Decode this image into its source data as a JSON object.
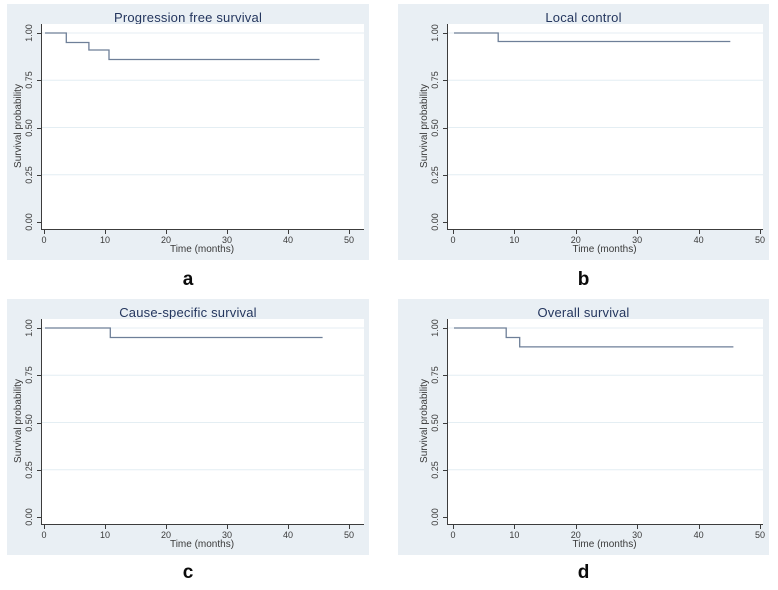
{
  "colors": {
    "page_bg": "#ffffff",
    "panel_bg": "#e9eff4",
    "plot_bg": "#ffffff",
    "curve_line": "#6e7f98",
    "grid_line": "#e4eef3",
    "axis_line": "#3c3c3c",
    "title_text": "#24365e",
    "tick_text": "#3a3a3a",
    "caption_text": "#0b0b0b"
  },
  "chart_data": [
    {
      "panel_label": "a",
      "type": "line",
      "subtype": "kaplan-meier-step",
      "title": "Progression free survival",
      "xlabel": "Time (months)",
      "ylabel": "Survival probability",
      "xlim": [
        0,
        50
      ],
      "ylim": [
        0.0,
        1.0
      ],
      "xticks": [
        "0",
        "10",
        "20",
        "30",
        "40",
        "50"
      ],
      "yticks": [
        "0.00",
        "0.25",
        "0.50",
        "0.75",
        "1.00"
      ],
      "grid": "horizontal",
      "legend": "none",
      "steps": [
        [
          0,
          1.0
        ],
        [
          3.5,
          1.0
        ],
        [
          3.5,
          0.95
        ],
        [
          7.2,
          0.95
        ],
        [
          7.2,
          0.91
        ],
        [
          10.5,
          0.91
        ],
        [
          10.5,
          0.86
        ],
        [
          45,
          0.86
        ]
      ]
    },
    {
      "panel_label": "b",
      "type": "line",
      "subtype": "kaplan-meier-step",
      "title": "Local control",
      "xlabel": "Time (months)",
      "ylabel": "Survival probability",
      "xlim": [
        0,
        50
      ],
      "ylim": [
        0.0,
        1.0
      ],
      "xticks": [
        "0",
        "10",
        "20",
        "30",
        "40",
        "50"
      ],
      "yticks": [
        "0.00",
        "0.25",
        "0.50",
        "0.75",
        "1.00"
      ],
      "grid": "horizontal",
      "legend": "none",
      "steps": [
        [
          0,
          1.0
        ],
        [
          7.2,
          1.0
        ],
        [
          7.2,
          0.955
        ],
        [
          45,
          0.955
        ]
      ]
    },
    {
      "panel_label": "c",
      "type": "line",
      "subtype": "kaplan-meier-step",
      "title": "Cause-specific survival",
      "xlabel": "Time (months)",
      "ylabel": "Survival probability",
      "xlim": [
        0,
        50
      ],
      "ylim": [
        0.0,
        1.0
      ],
      "xticks": [
        "0",
        "10",
        "20",
        "30",
        "40",
        "50"
      ],
      "yticks": [
        "0.00",
        "0.25",
        "0.50",
        "0.75",
        "1.00"
      ],
      "grid": "horizontal",
      "legend": "none",
      "steps": [
        [
          0,
          1.0
        ],
        [
          10.7,
          1.0
        ],
        [
          10.7,
          0.95
        ],
        [
          45.5,
          0.95
        ]
      ]
    },
    {
      "panel_label": "d",
      "type": "line",
      "subtype": "kaplan-meier-step",
      "title": "Overall survival",
      "xlabel": "Time (months)",
      "ylabel": "Survival probability",
      "xlim": [
        0,
        50
      ],
      "ylim": [
        0.0,
        1.0
      ],
      "xticks": [
        "0",
        "10",
        "20",
        "30",
        "40",
        "50"
      ],
      "yticks": [
        "0.00",
        "0.25",
        "0.50",
        "0.75",
        "1.00"
      ],
      "grid": "horizontal",
      "legend": "none",
      "steps": [
        [
          0,
          1.0
        ],
        [
          8.5,
          1.0
        ],
        [
          8.5,
          0.95
        ],
        [
          10.7,
          0.95
        ],
        [
          10.7,
          0.9
        ],
        [
          45.5,
          0.9
        ]
      ]
    }
  ]
}
